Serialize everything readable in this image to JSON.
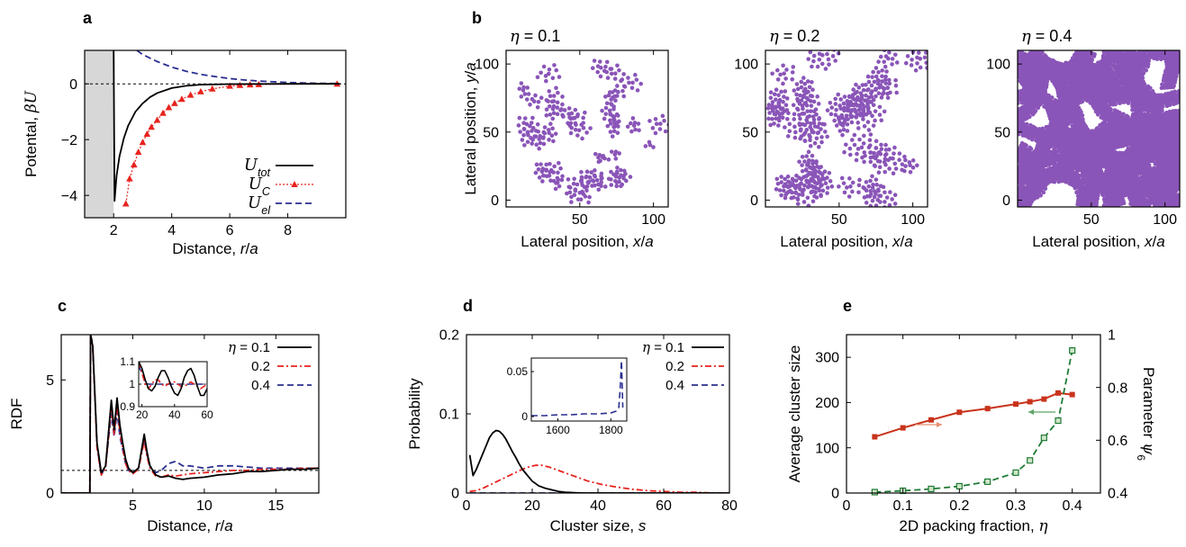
{
  "colors": {
    "axis": "#000000",
    "black_line": "#000000",
    "red": "#e8231e",
    "blue": "#2b2f8f",
    "purple": "#8a55b8",
    "green": "#1f7a35",
    "dark_red": "#c8331c",
    "salmon": "#e58e72",
    "light_green": "#5ca365",
    "gray_region": "#d7d7d7"
  },
  "chart_data": [
    {
      "panel": "a",
      "type": "line",
      "xlabel": "Distance, r/a",
      "ylabel": "Potental, βU",
      "xlim": [
        1,
        10
      ],
      "ylim": [
        -4.8,
        1.2
      ],
      "xticks": [
        2,
        4,
        6,
        8
      ],
      "yticks": [
        0,
        -2,
        -4
      ],
      "shaded_region": [
        1,
        2
      ],
      "reference_line_y": 0,
      "legend_position": "bottom-right",
      "series": [
        {
          "name": "U_tot",
          "style": "solid",
          "color": "#000000",
          "x": [
            2.0,
            2.03,
            2.1,
            2.2,
            2.35,
            2.5,
            2.75,
            3.0,
            3.25,
            3.5,
            4.0,
            4.5,
            5.0,
            6.0,
            8.0,
            9.8
          ],
          "y": [
            1.2,
            -4.2,
            -3.3,
            -2.6,
            -1.95,
            -1.5,
            -1.0,
            -0.7,
            -0.48,
            -0.33,
            -0.15,
            -0.07,
            -0.03,
            -0.01,
            0.0,
            0.0
          ]
        },
        {
          "name": "U_C",
          "style": "dotted-triangles",
          "color": "#e8231e",
          "x": [
            2.42,
            2.55,
            2.7,
            2.85,
            3.0,
            3.15,
            3.3,
            3.5,
            3.7,
            3.9,
            4.1,
            4.35,
            4.65,
            5.0,
            5.4,
            6.0,
            6.35,
            6.7,
            7.0,
            9.7
          ],
          "y": [
            -4.3,
            -3.4,
            -2.9,
            -2.45,
            -2.1,
            -1.8,
            -1.55,
            -1.3,
            -1.05,
            -0.85,
            -0.7,
            -0.55,
            -0.4,
            -0.28,
            -0.18,
            -0.08,
            -0.05,
            -0.03,
            -0.02,
            0.0
          ]
        },
        {
          "name": "U_el",
          "style": "dashed",
          "color": "#2b2f8f",
          "x": [
            2.8,
            3.0,
            3.5,
            4.0,
            4.5,
            5.0,
            5.5,
            6.0,
            6.5,
            7.0,
            8.0,
            9.0,
            9.8
          ],
          "y": [
            1.2,
            1.05,
            0.8,
            0.6,
            0.45,
            0.34,
            0.26,
            0.19,
            0.14,
            0.1,
            0.05,
            0.02,
            0.01
          ]
        }
      ],
      "legend": [
        "U_tot",
        "U_C",
        "U_el"
      ]
    },
    {
      "panel": "b",
      "type": "scatter",
      "xlabel": "Lateral position, x/a",
      "ylabel": "Lateral position, y/a",
      "xlim": [
        0,
        110
      ],
      "ylim": [
        -5,
        110
      ],
      "xticks": [
        50,
        100
      ],
      "yticks": [
        0,
        50,
        100
      ],
      "subplots": [
        {
          "title": "η = 0.1",
          "packing_fraction": 0.1
        },
        {
          "title": "η = 0.2",
          "packing_fraction": 0.2
        },
        {
          "title": "η = 0.4",
          "packing_fraction": 0.4
        }
      ],
      "point_color": "#8a55b8"
    },
    {
      "panel": "c",
      "type": "line",
      "xlabel": "Distance, r/a",
      "ylabel": "RDF",
      "xlim": [
        0,
        18
      ],
      "ylim": [
        0,
        7
      ],
      "xticks": [
        5,
        10,
        15
      ],
      "yticks": [
        0,
        5
      ],
      "reference_line_y": 1,
      "legend_position": "top-right",
      "series": [
        {
          "name": "η = 0.1",
          "style": "solid",
          "color": "#000000",
          "x": [
            0,
            2.0,
            2.05,
            2.2,
            2.5,
            2.8,
            3.1,
            3.5,
            3.7,
            3.9,
            4.1,
            4.3,
            4.5,
            4.7,
            5.0,
            5.4,
            5.8,
            6.0,
            6.2,
            6.6,
            7.0,
            7.5,
            8.0,
            8.5,
            9.0,
            10.0,
            11.0,
            12.0,
            13.0,
            14.0,
            15.0,
            16.0,
            17.0,
            18.0
          ],
          "y": [
            0,
            0,
            7,
            6.5,
            2.2,
            0.9,
            1.2,
            4.1,
            2.8,
            4.2,
            3.0,
            2.2,
            1.5,
            1.1,
            0.9,
            1.1,
            2.6,
            1.8,
            1.2,
            0.8,
            0.7,
            0.75,
            0.65,
            0.6,
            0.65,
            0.7,
            0.8,
            0.85,
            0.95,
            0.95,
            1.0,
            1.05,
            1.05,
            1.1
          ]
        },
        {
          "name": "0.2",
          "style": "dash-dot",
          "color": "#e8231e",
          "x": [
            0,
            2.0,
            2.05,
            2.2,
            2.5,
            2.8,
            3.1,
            3.5,
            3.7,
            3.9,
            4.1,
            4.3,
            4.5,
            4.7,
            5.0,
            5.4,
            5.8,
            6.0,
            6.2,
            6.6,
            7.0,
            7.5,
            8.0,
            8.5,
            9.0,
            10.0,
            11.0,
            12.0,
            13.0,
            14.0,
            15.0,
            16.0,
            17.0,
            18.0
          ],
          "y": [
            0,
            0,
            7,
            6.5,
            2.0,
            0.8,
            1.1,
            3.8,
            2.6,
            3.9,
            2.7,
            2.0,
            1.3,
            1.0,
            0.85,
            1.05,
            2.3,
            1.6,
            1.1,
            0.75,
            0.7,
            0.8,
            0.75,
            0.8,
            0.85,
            0.9,
            0.95,
            1.0,
            1.0,
            1.05,
            1.05,
            1.05,
            1.1,
            1.1
          ]
        },
        {
          "name": "0.4",
          "style": "dashed",
          "color": "#2b2f8f",
          "x": [
            0,
            2.0,
            2.05,
            2.2,
            2.5,
            2.8,
            3.1,
            3.5,
            3.7,
            3.9,
            4.1,
            4.3,
            4.5,
            4.7,
            5.0,
            5.4,
            5.8,
            6.0,
            6.2,
            6.6,
            7.0,
            7.5,
            8.0,
            8.5,
            9.0,
            10.0,
            11.0,
            12.0,
            13.0,
            14.0,
            15.0,
            16.0,
            17.0,
            18.0
          ],
          "y": [
            0,
            0,
            7,
            6.6,
            2.1,
            0.8,
            1.2,
            3.5,
            2.5,
            3.6,
            2.5,
            1.9,
            1.3,
            1.0,
            0.9,
            1.1,
            2.4,
            1.7,
            1.2,
            0.9,
            1.0,
            1.3,
            1.4,
            1.2,
            1.2,
            1.1,
            1.2,
            1.2,
            1.15,
            1.1,
            1.1,
            1.1,
            1.1,
            1.1
          ]
        }
      ],
      "legend": [
        "η = 0.1",
        "0.2",
        "0.4"
      ],
      "inset": {
        "xlim": [
          18,
          60
        ],
        "ylim": [
          0.9,
          1.1
        ],
        "xticks": [
          20,
          40,
          60
        ],
        "yticks": [
          0.9,
          1,
          1.1
        ],
        "reference_line_y": 1,
        "series": [
          {
            "name": "η = 0.1",
            "x": [
              18,
              20,
              22,
              24,
              26,
              28,
              30,
              32,
              34,
              36,
              38,
              40,
              42,
              44,
              46,
              48,
              50,
              52,
              54,
              56,
              58,
              60
            ],
            "y": [
              1.1,
              1.07,
              1.02,
              0.98,
              0.97,
              0.99,
              1.03,
              1.06,
              1.06,
              1.03,
              0.99,
              0.96,
              0.95,
              0.98,
              1.03,
              1.06,
              1.07,
              1.04,
              0.99,
              0.95,
              0.95,
              0.98
            ]
          },
          {
            "name": "0.2",
            "x": [
              18,
              20,
              22,
              24,
              26,
              28,
              30,
              32,
              34,
              36,
              38,
              40,
              42,
              44,
              46,
              48,
              50,
              52,
              54,
              56,
              58,
              60
            ],
            "y": [
              1.1,
              1.05,
              1.0,
              0.98,
              1.0,
              1.02,
              1.02,
              1.0,
              0.99,
              1.0,
              1.01,
              1.01,
              1.0,
              0.99,
              0.99,
              1.0,
              1.01,
              1.0,
              0.99,
              0.98,
              0.99,
              1.0
            ]
          },
          {
            "name": "0.4",
            "x": [
              18,
              20,
              22,
              24,
              26,
              28,
              30,
              32,
              34,
              36,
              38,
              40,
              42,
              44,
              46,
              48,
              50,
              52,
              54,
              56,
              58,
              60
            ],
            "y": [
              1.08,
              1.05,
              1.01,
              1.0,
              1.0,
              1.0,
              1.0,
              1.0,
              1.0,
              1.0,
              1.0,
              1.0,
              1.0,
              1.0,
              1.0,
              1.0,
              1.0,
              1.0,
              1.0,
              1.0,
              1.0,
              1.0
            ]
          }
        ]
      }
    },
    {
      "panel": "d",
      "type": "line",
      "xlabel": "Cluster size, s",
      "ylabel": "Probability",
      "xlim": [
        0,
        80
      ],
      "ylim": [
        0,
        0.2
      ],
      "xticks": [
        0,
        20,
        40,
        60,
        80
      ],
      "yticks": [
        0,
        0.1,
        0.2
      ],
      "legend_position": "top-right",
      "series": [
        {
          "name": "η = 0.1",
          "style": "solid",
          "color": "#000000",
          "x": [
            1,
            2,
            3,
            4,
            5,
            6,
            7,
            8,
            9,
            10,
            11,
            12,
            13,
            14,
            15,
            16,
            17,
            18,
            19,
            20,
            22,
            24,
            26,
            28,
            30,
            35,
            40,
            50,
            60,
            80
          ],
          "y": [
            0.048,
            0.022,
            0.03,
            0.04,
            0.05,
            0.06,
            0.07,
            0.076,
            0.079,
            0.078,
            0.074,
            0.068,
            0.06,
            0.052,
            0.045,
            0.037,
            0.03,
            0.025,
            0.02,
            0.015,
            0.009,
            0.006,
            0.004,
            0.002,
            0.001,
            0.0,
            0.0,
            0.0,
            0.0,
            0.0
          ]
        },
        {
          "name": "0.2",
          "style": "dash-dot",
          "color": "#e8231e",
          "x": [
            1,
            3,
            5,
            7,
            9,
            11,
            13,
            15,
            17,
            19,
            21,
            23,
            25,
            27,
            29,
            31,
            33,
            35,
            37,
            39,
            41,
            45,
            50,
            55,
            60,
            65,
            70,
            75,
            80
          ],
          "y": [
            0.002,
            0.003,
            0.006,
            0.01,
            0.014,
            0.018,
            0.022,
            0.026,
            0.03,
            0.033,
            0.035,
            0.035,
            0.033,
            0.03,
            0.027,
            0.024,
            0.021,
            0.018,
            0.015,
            0.013,
            0.011,
            0.008,
            0.005,
            0.003,
            0.002,
            0.001,
            0.001,
            0.0,
            0.0
          ]
        },
        {
          "name": "0.4",
          "style": "dashed",
          "color": "#2b2f8f",
          "x": [
            1,
            10,
            20,
            40,
            60,
            80
          ],
          "y": [
            0.0,
            0.0,
            0.0,
            0.0,
            0.0,
            0.0
          ]
        }
      ],
      "legend": [
        "η = 0.1",
        "0.2",
        "0.4"
      ],
      "inset": {
        "xlim": [
          1500,
          1860
        ],
        "ylim": [
          -0.005,
          0.065
        ],
        "xticks": [
          1600,
          1800
        ],
        "yticks": [
          0,
          0.05
        ],
        "series": [
          {
            "name": "0.4",
            "x": [
              1500,
              1550,
              1600,
              1650,
              1700,
              1750,
              1800,
              1820,
              1830,
              1835,
              1840,
              1845
            ],
            "y": [
              0.001,
              0.001,
              0.002,
              0.002,
              0.003,
              0.003,
              0.004,
              0.006,
              0.01,
              0.03,
              0.062,
              0.01
            ]
          }
        ]
      }
    },
    {
      "panel": "e",
      "type": "line",
      "xlabel": "2D packing fraction, η",
      "ylabel": "Average cluster size",
      "ylabel_right": "Parameter ψ6",
      "xlim": [
        0,
        0.45
      ],
      "ylim": [
        0,
        350
      ],
      "ylim_right": [
        0.4,
        1
      ],
      "xticks": [
        0,
        0.1,
        0.2,
        0.3,
        0.4
      ],
      "yticks": [
        0,
        100,
        200,
        300
      ],
      "yticks_right": [
        0.4,
        0.6,
        0.8,
        1
      ],
      "series": [
        {
          "name": "Average cluster size",
          "axis": "left",
          "style": "dashed-squares",
          "color": "#1f7a35",
          "x": [
            0.05,
            0.1,
            0.15,
            0.2,
            0.25,
            0.3,
            0.325,
            0.35,
            0.375,
            0.4
          ],
          "y": [
            2,
            5,
            9,
            15,
            25,
            45,
            72,
            122,
            160,
            315
          ]
        },
        {
          "name": "Parameter ψ6",
          "axis": "right",
          "style": "solid-squares",
          "color": "#c8331c",
          "x": [
            0.05,
            0.1,
            0.15,
            0.2,
            0.25,
            0.3,
            0.325,
            0.35,
            0.375,
            0.4
          ],
          "y": [
            0.613,
            0.647,
            0.677,
            0.706,
            0.72,
            0.737,
            0.746,
            0.756,
            0.779,
            0.773
          ]
        }
      ]
    }
  ],
  "panel_labels": [
    "a",
    "b",
    "c",
    "d",
    "e"
  ]
}
